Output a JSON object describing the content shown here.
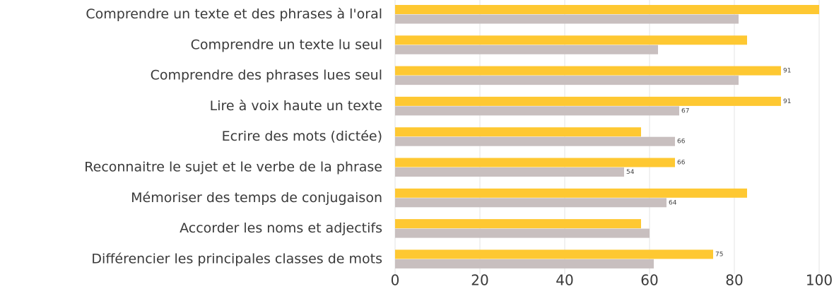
{
  "chart_data": {
    "type": "hbar",
    "categories": [
      "Comprendre un texte et des phrases à l'oral",
      "Comprendre un texte lu seul",
      "Comprendre des phrases lues seul",
      "Lire à voix haute un texte",
      "Ecrire des mots (dictée)",
      "Reconnaitre le sujet et le verbe de la phrase",
      "Mémoriser des temps de conjugaison",
      "Accorder les noms et adjectifs",
      "Différencier les principales classes de mots"
    ],
    "series": [
      {
        "color": "#fec832",
        "values": [
          100,
          83,
          91,
          91,
          58,
          66,
          83,
          58,
          75
        ],
        "value_labels": [
          null,
          null,
          "91",
          "91",
          null,
          "66",
          null,
          null,
          "75"
        ]
      },
      {
        "color": "#c8bfbf",
        "values": [
          81,
          62,
          81,
          67,
          66,
          54,
          64,
          60,
          61
        ],
        "value_labels": [
          null,
          null,
          null,
          "67",
          "66",
          "54",
          "64",
          null,
          null
        ]
      }
    ],
    "xlim": [
      0,
      100
    ],
    "xticks": [
      0,
      20,
      40,
      60,
      80,
      100
    ],
    "grid": true
  }
}
